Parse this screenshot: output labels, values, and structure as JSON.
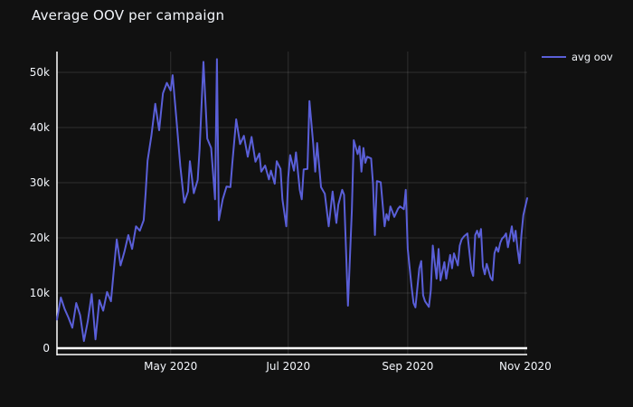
{
  "colors": {
    "background": "#111111",
    "text": "#f2f5fa",
    "grid": "rgba(255,255,255,0.13)",
    "axis_line": "#ffffff",
    "series_line": "#5a5fd8"
  },
  "chart_data": {
    "type": "line",
    "title": "Average OOV per campaign",
    "grid": true,
    "legend": {
      "position": "top-right"
    },
    "x_axis": {
      "unit": "day_offset",
      "range_days": [
        0,
        244
      ],
      "ticks": [
        {
          "label": "May 2020",
          "day": 59
        },
        {
          "label": "Jul 2020",
          "day": 120
        },
        {
          "label": "Sep 2020",
          "day": 182
        },
        {
          "label": "Nov 2020",
          "day": 243
        }
      ]
    },
    "y_axis": {
      "range": [
        0,
        52400
      ],
      "ticks": [
        {
          "label": "0",
          "value": 0
        },
        {
          "label": "10k",
          "value": 10000
        },
        {
          "label": "20k",
          "value": 20000
        },
        {
          "label": "30k",
          "value": 30000
        },
        {
          "label": "40k",
          "value": 40000
        },
        {
          "label": "50k",
          "value": 50000
        }
      ]
    },
    "series": [
      {
        "name": "avg oov",
        "color": "#5a5fd8",
        "points": [
          [
            0,
            5200
          ],
          [
            2,
            9200
          ],
          [
            4,
            7100
          ],
          [
            6,
            5500
          ],
          [
            8,
            3700
          ],
          [
            10,
            8200
          ],
          [
            12,
            6000
          ],
          [
            14,
            1300
          ],
          [
            16,
            4900
          ],
          [
            18,
            9800
          ],
          [
            20,
            1600
          ],
          [
            22,
            8700
          ],
          [
            24,
            6800
          ],
          [
            26,
            10200
          ],
          [
            28,
            8500
          ],
          [
            30,
            16000
          ],
          [
            31,
            19700
          ],
          [
            33,
            15000
          ],
          [
            35,
            17500
          ],
          [
            37,
            20500
          ],
          [
            39,
            18000
          ],
          [
            41,
            22100
          ],
          [
            43,
            21300
          ],
          [
            45,
            23200
          ],
          [
            46,
            28000
          ],
          [
            47,
            34000
          ],
          [
            49,
            38500
          ],
          [
            51,
            44300
          ],
          [
            53,
            39500
          ],
          [
            55,
            46200
          ],
          [
            57,
            48100
          ],
          [
            59,
            46700
          ],
          [
            60,
            49500
          ],
          [
            62,
            41500
          ],
          [
            64,
            33000
          ],
          [
            66,
            26400
          ],
          [
            68,
            28400
          ],
          [
            69,
            33900
          ],
          [
            71,
            28100
          ],
          [
            73,
            30500
          ],
          [
            74,
            36000
          ],
          [
            76,
            51900
          ],
          [
            78,
            38000
          ],
          [
            80,
            36300
          ],
          [
            82,
            27000
          ],
          [
            83,
            52400
          ],
          [
            84,
            23200
          ],
          [
            86,
            27000
          ],
          [
            88,
            29300
          ],
          [
            90,
            29200
          ],
          [
            91,
            33500
          ],
          [
            93,
            41500
          ],
          [
            95,
            37000
          ],
          [
            97,
            38500
          ],
          [
            99,
            34700
          ],
          [
            101,
            38300
          ],
          [
            103,
            33800
          ],
          [
            105,
            35300
          ],
          [
            106,
            32000
          ],
          [
            108,
            33100
          ],
          [
            110,
            30600
          ],
          [
            111,
            32200
          ],
          [
            113,
            29800
          ],
          [
            114,
            33900
          ],
          [
            116,
            32500
          ],
          [
            117,
            27000
          ],
          [
            119,
            22100
          ],
          [
            120,
            30900
          ],
          [
            121,
            35000
          ],
          [
            123,
            32200
          ],
          [
            124,
            35500
          ],
          [
            126,
            28700
          ],
          [
            127,
            27000
          ],
          [
            128,
            32400
          ],
          [
            130,
            32500
          ],
          [
            131,
            44800
          ],
          [
            133,
            37000
          ],
          [
            134,
            32000
          ],
          [
            135,
            37200
          ],
          [
            137,
            29200
          ],
          [
            139,
            28000
          ],
          [
            141,
            22100
          ],
          [
            143,
            28400
          ],
          [
            145,
            22700
          ],
          [
            146,
            26000
          ],
          [
            148,
            28700
          ],
          [
            149,
            27800
          ],
          [
            151,
            7700
          ],
          [
            153,
            25000
          ],
          [
            154,
            37700
          ],
          [
            156,
            35200
          ],
          [
            157,
            36600
          ],
          [
            158,
            32000
          ],
          [
            159,
            36300
          ],
          [
            160,
            33600
          ],
          [
            161,
            34700
          ],
          [
            163,
            34400
          ],
          [
            164,
            29800
          ],
          [
            165,
            20500
          ],
          [
            166,
            30300
          ],
          [
            168,
            30100
          ],
          [
            170,
            22100
          ],
          [
            171,
            24300
          ],
          [
            172,
            23200
          ],
          [
            173,
            25700
          ],
          [
            174,
            24800
          ],
          [
            175,
            23800
          ],
          [
            177,
            25300
          ],
          [
            178,
            25700
          ],
          [
            180,
            25200
          ],
          [
            181,
            28700
          ],
          [
            182,
            18000
          ],
          [
            184,
            11200
          ],
          [
            185,
            8200
          ],
          [
            186,
            7400
          ],
          [
            188,
            14500
          ],
          [
            189,
            15800
          ],
          [
            190,
            9600
          ],
          [
            191,
            8500
          ],
          [
            193,
            7500
          ],
          [
            194,
            10500
          ],
          [
            195,
            18600
          ],
          [
            197,
            12600
          ],
          [
            198,
            18000
          ],
          [
            199,
            12300
          ],
          [
            201,
            15600
          ],
          [
            202,
            12600
          ],
          [
            204,
            16900
          ],
          [
            205,
            14500
          ],
          [
            206,
            17200
          ],
          [
            208,
            15000
          ],
          [
            209,
            18600
          ],
          [
            210,
            19700
          ],
          [
            211,
            20200
          ],
          [
            212,
            20500
          ],
          [
            213,
            20800
          ],
          [
            215,
            14200
          ],
          [
            216,
            13100
          ],
          [
            217,
            20500
          ],
          [
            218,
            21300
          ],
          [
            219,
            20100
          ],
          [
            220,
            21600
          ],
          [
            221,
            14800
          ],
          [
            222,
            13400
          ],
          [
            223,
            15300
          ],
          [
            225,
            12800
          ],
          [
            226,
            12300
          ],
          [
            227,
            17200
          ],
          [
            228,
            18300
          ],
          [
            229,
            17500
          ],
          [
            230,
            19100
          ],
          [
            231,
            19900
          ],
          [
            232,
            20200
          ],
          [
            233,
            20800
          ],
          [
            234,
            18300
          ],
          [
            236,
            22100
          ],
          [
            237,
            19400
          ],
          [
            238,
            21300
          ],
          [
            239,
            18000
          ],
          [
            240,
            15400
          ],
          [
            241,
            20500
          ],
          [
            242,
            24100
          ],
          [
            244,
            27200
          ]
        ]
      }
    ]
  }
}
